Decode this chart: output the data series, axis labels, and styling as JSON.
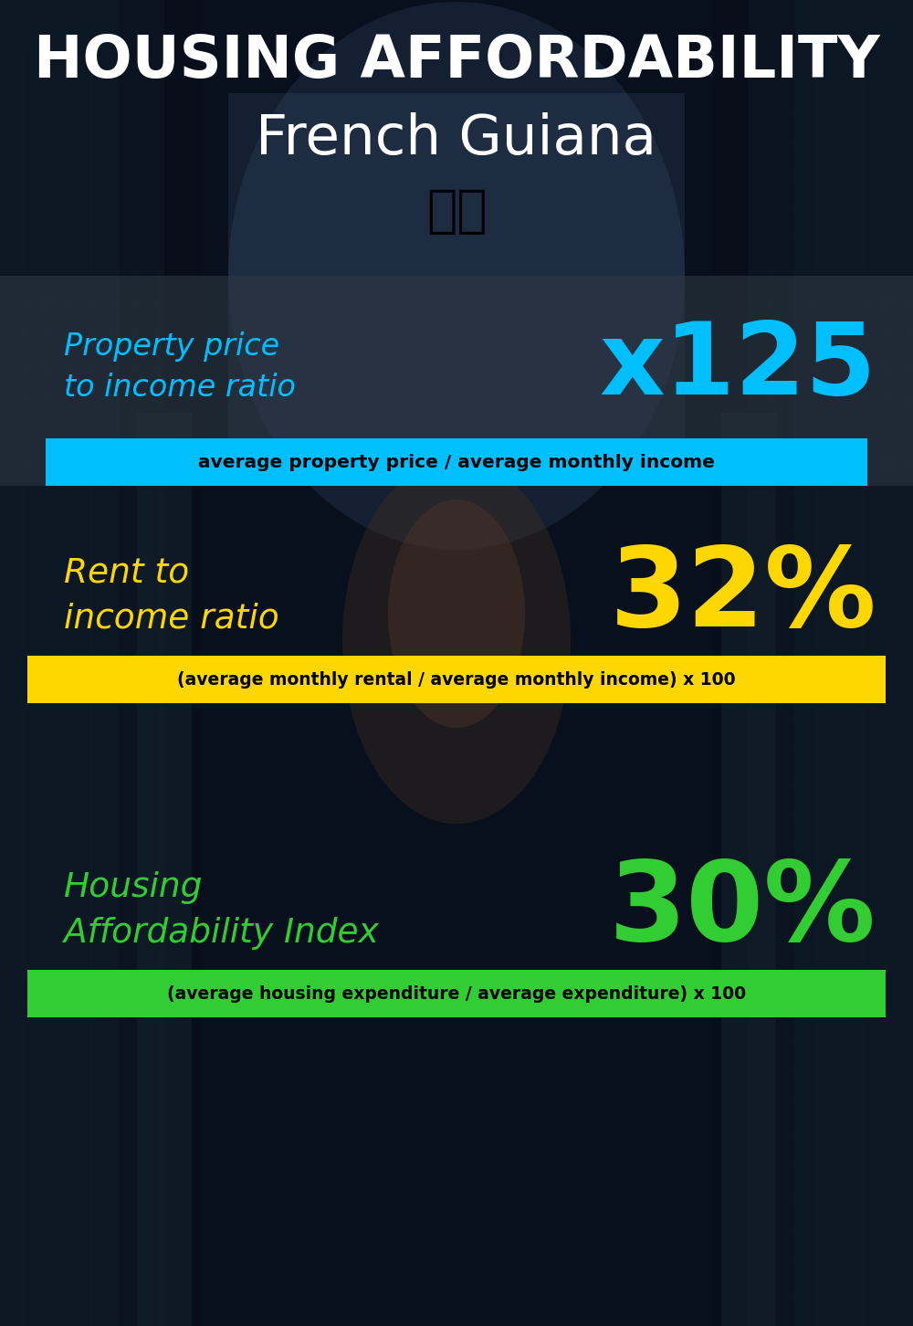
{
  "title_line1": "HOUSING AFFORDABILITY",
  "title_line2": "French Guiana",
  "flag_emoji": "🇶🇫",
  "section1_label": "Property price\nto income ratio",
  "section1_value": "x125",
  "section1_label_color": "#00BFFF",
  "section1_value_color": "#00BFFF",
  "section1_banner_text": "average property price / average monthly income",
  "section1_banner_bg": "#00BFFF",
  "section1_banner_text_color": "#000000",
  "section2_label": "Rent to\nincome ratio",
  "section2_value": "32%",
  "section2_label_color": "#FFD700",
  "section2_value_color": "#FFD700",
  "section2_banner_text": "(average monthly rental / average monthly income) x 100",
  "section2_banner_bg": "#FFD700",
  "section2_banner_text_color": "#000000",
  "section3_label": "Housing\nAffordability Index",
  "section3_value": "30%",
  "section3_label_color": "#32CD32",
  "section3_value_color": "#32CD32",
  "section3_banner_text": "(average housing expenditure / average expenditure) x 100",
  "section3_banner_bg": "#32CD32",
  "section3_banner_text_color": "#000000",
  "bg_color": "#0a1020",
  "title_color": "#FFFFFF",
  "fig_width": 10.0,
  "fig_height": 14.52
}
